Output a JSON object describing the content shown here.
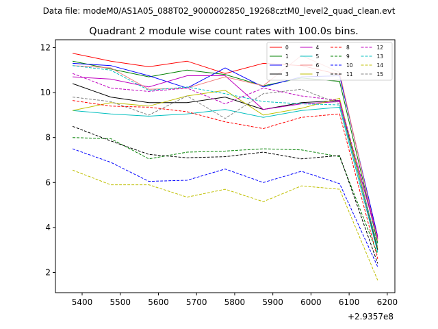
{
  "chart_data": {
    "type": "line",
    "suptitle": "Data file: modeM0/AS1A05_088T02_9000002850_19268cztM0_level2_quad_clean.evt",
    "title": "Quadrant 2 module wise count rates with 100.0s bins.",
    "xlabel": "",
    "ylabel": "",
    "x_offset_label": "+2.9357e8",
    "x": [
      5375,
      5475,
      5575,
      5675,
      5775,
      5875,
      5975,
      6075,
      6175
    ],
    "xlim": [
      5330,
      6220
    ],
    "ylim": [
      1.1,
      12.35
    ],
    "xticks": [
      5400,
      5500,
      5600,
      5700,
      5800,
      5900,
      6000,
      6100,
      6200
    ],
    "yticks": [
      2,
      4,
      6,
      8,
      10,
      12
    ],
    "legend_position": "upper-right",
    "legend_columns": 4,
    "series": [
      {
        "name": "0",
        "color": "#ff0000",
        "dash": "solid",
        "values": [
          11.75,
          11.4,
          11.15,
          11.4,
          10.85,
          11.3,
          11.2,
          10.8,
          3.5
        ]
      },
      {
        "name": "1",
        "color": "#008000",
        "dash": "solid",
        "values": [
          11.4,
          11.05,
          10.7,
          11.0,
          10.8,
          10.3,
          10.65,
          10.5,
          3.3
        ]
      },
      {
        "name": "2",
        "color": "#0000ff",
        "dash": "solid",
        "values": [
          11.3,
          11.2,
          10.75,
          10.2,
          11.1,
          10.25,
          10.7,
          10.75,
          3.6
        ]
      },
      {
        "name": "3",
        "color": "#000000",
        "dash": "solid",
        "values": [
          10.4,
          9.8,
          9.55,
          9.55,
          9.8,
          9.25,
          9.55,
          9.65,
          3.0
        ]
      },
      {
        "name": "4",
        "color": "#bf00bf",
        "dash": "solid",
        "values": [
          10.7,
          10.6,
          10.25,
          10.75,
          10.75,
          9.25,
          9.5,
          9.6,
          3.5
        ]
      },
      {
        "name": "5",
        "color": "#00bfbf",
        "dash": "solid",
        "values": [
          9.2,
          9.05,
          8.95,
          9.05,
          9.25,
          8.9,
          9.2,
          9.35,
          2.9
        ]
      },
      {
        "name": "6",
        "color": "#f08080",
        "dash": "solid",
        "values": [
          11.2,
          11.1,
          10.15,
          10.2,
          10.7,
          10.3,
          11.65,
          10.9,
          3.4
        ]
      },
      {
        "name": "7",
        "color": "#bfbf00",
        "dash": "solid",
        "values": [
          9.2,
          9.55,
          9.4,
          9.85,
          10.1,
          9.0,
          9.3,
          9.75,
          3.1
        ]
      },
      {
        "name": "8",
        "color": "#ff0000",
        "dash": "dashed",
        "values": [
          9.65,
          9.4,
          9.35,
          9.15,
          8.7,
          8.4,
          8.9,
          9.05,
          2.6
        ]
      },
      {
        "name": "9",
        "color": "#008000",
        "dash": "dashed",
        "values": [
          8.0,
          7.95,
          7.05,
          7.35,
          7.4,
          7.5,
          7.45,
          7.15,
          2.8
        ]
      },
      {
        "name": "10",
        "color": "#0000ff",
        "dash": "dashed",
        "values": [
          7.5,
          6.9,
          6.05,
          6.1,
          6.6,
          6.0,
          6.5,
          5.95,
          2.25
        ]
      },
      {
        "name": "11",
        "color": "#000000",
        "dash": "dashed",
        "values": [
          8.5,
          7.85,
          7.25,
          7.1,
          7.15,
          7.35,
          7.05,
          7.2,
          2.4
        ]
      },
      {
        "name": "12",
        "color": "#bf00bf",
        "dash": "dashed",
        "values": [
          10.85,
          10.2,
          10.05,
          10.2,
          9.5,
          10.2,
          9.85,
          9.65,
          3.6
        ]
      },
      {
        "name": "13",
        "color": "#00bfbf",
        "dash": "dashed",
        "values": [
          11.2,
          11.0,
          10.1,
          10.25,
          9.95,
          9.6,
          9.5,
          9.45,
          3.2
        ]
      },
      {
        "name": "14",
        "color": "#bfbf00",
        "dash": "dashed",
        "values": [
          6.55,
          5.9,
          5.9,
          5.35,
          5.7,
          5.15,
          5.85,
          5.7,
          1.65
        ]
      },
      {
        "name": "15",
        "color": "#808080",
        "dash": "dashed",
        "values": [
          9.8,
          9.6,
          9.0,
          9.85,
          8.85,
          9.95,
          10.15,
          9.5,
          3.1
        ]
      }
    ]
  }
}
